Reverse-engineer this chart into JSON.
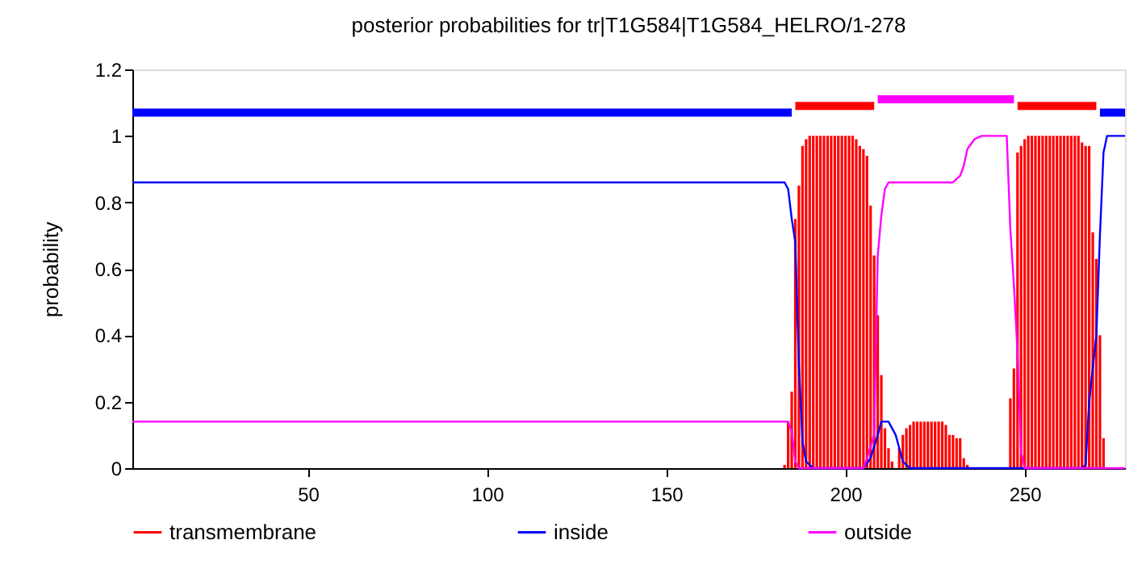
{
  "chart_data": {
    "type": "line",
    "title": "posterior probabilities for tr|T1G584|T1G584_HELRO/1-278",
    "ylabel": "probability",
    "xlim": [
      1,
      278
    ],
    "xticks": [
      50,
      100,
      150,
      200,
      250
    ],
    "ylim": [
      0,
      1.2
    ],
    "yticks": [
      0,
      0.2,
      0.4,
      0.6,
      0.8,
      1,
      1.2
    ],
    "grid": false,
    "legend": "bottom",
    "series": [
      {
        "name": "transmembrane",
        "type": "bar",
        "color": "#ff0000",
        "x": [
          183,
          184,
          185,
          186,
          187,
          188,
          189,
          190,
          191,
          192,
          193,
          194,
          195,
          196,
          197,
          198,
          199,
          200,
          201,
          202,
          203,
          204,
          205,
          206,
          207,
          208,
          209,
          210,
          211,
          212,
          213,
          215,
          216,
          217,
          218,
          219,
          220,
          221,
          222,
          223,
          224,
          225,
          226,
          227,
          228,
          229,
          230,
          231,
          232,
          233,
          234,
          246,
          247,
          248,
          249,
          250,
          251,
          252,
          253,
          254,
          255,
          256,
          257,
          258,
          259,
          260,
          261,
          262,
          263,
          264,
          265,
          266,
          267,
          268,
          269,
          270,
          271,
          272
        ],
        "values": [
          0.01,
          0.14,
          0.23,
          0.75,
          0.85,
          0.97,
          0.99,
          1,
          1,
          1,
          1,
          1,
          1,
          1,
          1,
          1,
          1,
          1,
          1,
          1,
          0.99,
          0.97,
          0.96,
          0.94,
          0.79,
          0.64,
          0.46,
          0.28,
          0.12,
          0.06,
          0.02,
          0.06,
          0.1,
          0.12,
          0.13,
          0.14,
          0.14,
          0.14,
          0.14,
          0.14,
          0.14,
          0.14,
          0.14,
          0.14,
          0.13,
          0.1,
          0.1,
          0.09,
          0.09,
          0.03,
          0.01,
          0.21,
          0.3,
          0.95,
          0.97,
          0.99,
          1,
          1,
          1,
          1,
          1,
          1,
          1,
          1,
          1,
          1,
          1,
          1,
          1,
          1,
          1,
          0.98,
          0.97,
          0.97,
          0.71,
          0.63,
          0.4,
          0.09
        ]
      },
      {
        "name": "inside",
        "color": "#0000ff",
        "x": [
          1,
          183,
          184,
          185,
          186,
          187,
          188,
          189,
          191,
          205,
          207,
          209,
          210,
          212,
          214,
          215,
          216,
          218,
          266,
          267,
          268,
          269,
          270,
          271,
          272,
          273,
          278
        ],
        "values": [
          0.86,
          0.86,
          0.84,
          0.75,
          0.68,
          0.31,
          0.08,
          0.02,
          0,
          0,
          0.03,
          0.1,
          0.14,
          0.14,
          0.1,
          0.06,
          0.02,
          0,
          0,
          0.01,
          0.2,
          0.3,
          0.4,
          0.7,
          0.95,
          1,
          1
        ]
      },
      {
        "name": "outside",
        "color": "#ff00ff",
        "x": [
          1,
          184,
          185,
          186,
          187,
          205,
          206,
          208,
          209,
          210,
          211,
          212,
          230,
          232,
          233,
          234,
          236,
          238,
          245,
          246,
          247,
          248,
          249,
          250,
          278
        ],
        "values": [
          0.14,
          0.14,
          0.11,
          0.02,
          0,
          0,
          0.03,
          0.1,
          0.64,
          0.76,
          0.84,
          0.86,
          0.86,
          0.88,
          0.91,
          0.96,
          0.99,
          1,
          1,
          0.72,
          0.55,
          0.35,
          0.05,
          0,
          0
        ]
      },
      {
        "type": "line",
        "color": "#0000ff",
        "x": [
          1,
          185
        ],
        "values": [
          1.07,
          1.07
        ]
      },
      {
        "type": "line",
        "color": "#ff0000",
        "x": [
          186,
          208
        ],
        "values": [
          1.09,
          1.09
        ]
      },
      {
        "type": "line",
        "color": "#ff00ff",
        "x": [
          209,
          247
        ],
        "values": [
          1.11,
          1.11
        ]
      },
      {
        "type": "line",
        "color": "#ff0000",
        "x": [
          248,
          270
        ],
        "values": [
          1.09,
          1.09
        ]
      },
      {
        "type": "line",
        "color": "#0000ff",
        "x": [
          271,
          278
        ],
        "values": [
          1.07,
          1.07
        ]
      }
    ]
  }
}
